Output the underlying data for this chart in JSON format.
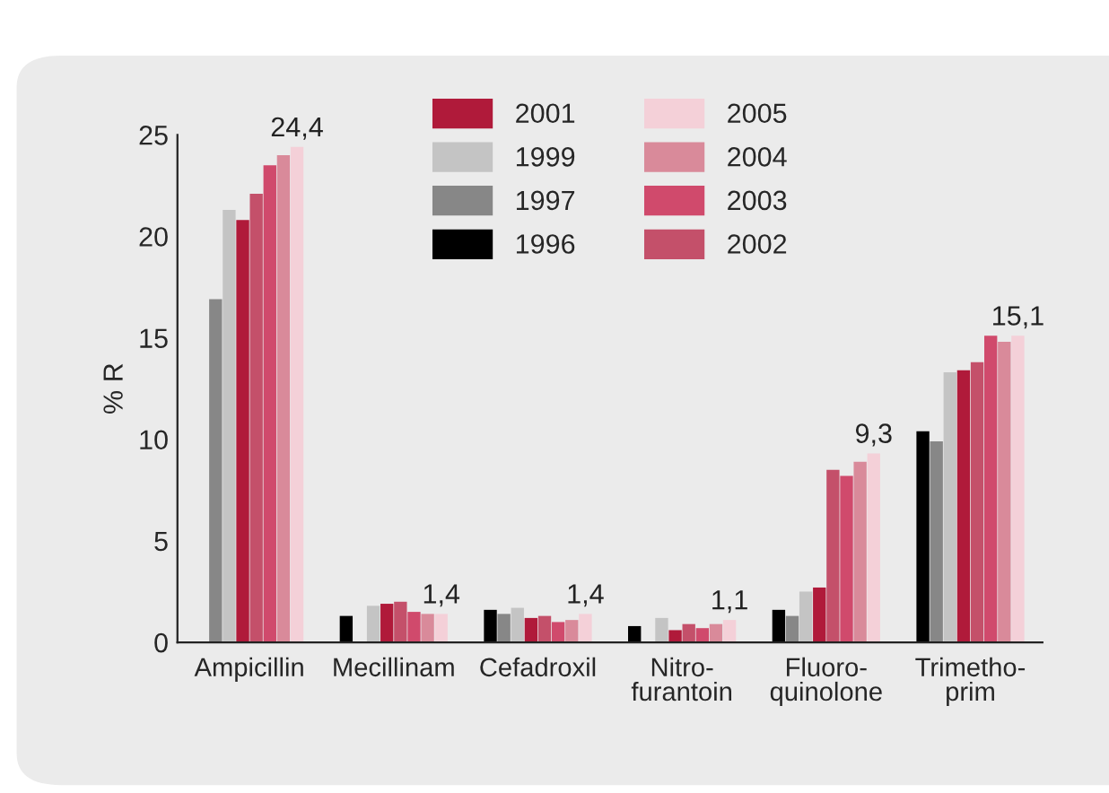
{
  "chart_data": {
    "type": "bar",
    "ylabel": "% R",
    "categories": [
      "Ampicillin",
      "Mecillinam",
      "Cefadroxil",
      "Nitro-\nfurantoin",
      "Fluoro-\nquinolone",
      "Trimetho-\nprim"
    ],
    "ylim": [
      0,
      25
    ],
    "yticks": [
      0,
      5,
      10,
      15,
      20,
      25
    ],
    "grid": false,
    "legend": "top",
    "series": [
      {
        "name": "1996",
        "color": "#000000",
        "values": [
          null,
          1.3,
          1.6,
          0.8,
          1.6,
          10.4
        ]
      },
      {
        "name": "1997",
        "color": "#878787",
        "values": [
          16.9,
          null,
          1.4,
          null,
          1.3,
          9.9
        ]
      },
      {
        "name": "1999",
        "color": "#c4c4c4",
        "values": [
          21.3,
          1.8,
          1.7,
          1.2,
          2.5,
          13.3
        ]
      },
      {
        "name": "2001",
        "color": "#b01a3a",
        "values": [
          20.8,
          1.9,
          1.2,
          0.6,
          2.7,
          13.4
        ]
      },
      {
        "name": "2002",
        "color": "#c4506a",
        "values": [
          22.1,
          2.0,
          1.3,
          0.9,
          8.5,
          13.8
        ]
      },
      {
        "name": "2003",
        "color": "#d04a6c",
        "values": [
          23.5,
          1.5,
          1.0,
          0.7,
          8.2,
          15.1
        ]
      },
      {
        "name": "2004",
        "color": "#d98a9a",
        "values": [
          24.0,
          1.4,
          1.1,
          0.9,
          8.9,
          14.8
        ]
      },
      {
        "name": "2005",
        "color": "#f4d0d8",
        "values": [
          24.4,
          1.4,
          1.4,
          1.1,
          9.3,
          15.1
        ],
        "value_labels": [
          "24,4",
          "1,4",
          "1,4",
          "1,1",
          "9,3",
          "15,1"
        ]
      }
    ]
  }
}
